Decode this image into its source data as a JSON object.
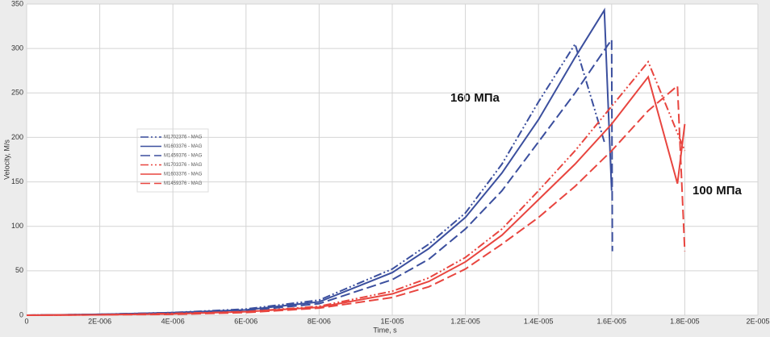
{
  "chart_data": {
    "type": "line",
    "xlabel": "Time, s",
    "ylabel": "Velocity, M/s",
    "xlim": [
      0,
      2e-05
    ],
    "ylim": [
      0,
      350
    ],
    "xticks": [
      0,
      {
        "value": 2e-06,
        "label": "2E-006"
      },
      {
        "value": 4e-06,
        "label": "4E-006"
      },
      {
        "value": 6e-06,
        "label": "6E-006"
      },
      {
        "value": 8e-06,
        "label": "8E-006"
      },
      {
        "value": 1e-05,
        "label": "1E-005"
      },
      {
        "value": 1.2e-05,
        "label": "1.2E-005"
      },
      {
        "value": 1.4e-05,
        "label": "1.4E-005"
      },
      {
        "value": 1.6e-05,
        "label": "1.6E-005"
      },
      {
        "value": 1.8e-05,
        "label": "1.8E-005"
      },
      {
        "value": 2e-05,
        "label": "2E-005"
      }
    ],
    "yticks": [
      0,
      50,
      100,
      150,
      200,
      250,
      300,
      350
    ],
    "grid": true,
    "annotations": [
      {
        "text": "160 МПа"
      },
      {
        "text": "100 МПа"
      }
    ],
    "series": [
      {
        "name": "M1702376 - MAG",
        "color": "#3b4f9e",
        "dash": "dashdotdot",
        "x": [
          0,
          2e-06,
          4e-06,
          6e-06,
          8e-06,
          1e-05,
          1.1e-05,
          1.2e-05,
          1.3e-05,
          1.4e-05,
          1.5e-05,
          1.58e-05
        ],
        "values": [
          0,
          1,
          3,
          7,
          17,
          52,
          80,
          115,
          170,
          240,
          305,
          195
        ]
      },
      {
        "name": "M1603376 - MAG",
        "color": "#3b4f9e",
        "dash": "solid",
        "x": [
          0,
          2e-06,
          4e-06,
          6e-06,
          8e-06,
          1e-05,
          1.1e-05,
          1.2e-05,
          1.3e-05,
          1.4e-05,
          1.5e-05,
          1.58e-05,
          1.6e-05
        ],
        "values": [
          0,
          1,
          3,
          6,
          15,
          48,
          75,
          110,
          160,
          220,
          290,
          343,
          140
        ]
      },
      {
        "name": "M1459376 - MAG",
        "color": "#3b4f9e",
        "dash": "dash",
        "x": [
          0,
          2e-06,
          4e-06,
          6e-06,
          8e-06,
          1e-05,
          1.1e-05,
          1.2e-05,
          1.3e-05,
          1.4e-05,
          1.5e-05,
          1.6e-05,
          1.602e-05
        ],
        "values": [
          0,
          1,
          2,
          5,
          13,
          40,
          63,
          97,
          140,
          195,
          250,
          310,
          72
        ]
      },
      {
        "name": "M1703376 - MAG",
        "color": "#e8453f",
        "dash": "dashdotdot",
        "x": [
          0,
          2e-06,
          4e-06,
          6e-06,
          8e-06,
          1e-05,
          1.1e-05,
          1.2e-05,
          1.3e-05,
          1.4e-05,
          1.5e-05,
          1.6e-05,
          1.7e-05,
          1.8e-05
        ],
        "values": [
          0,
          0.5,
          2,
          4,
          10,
          27,
          42,
          65,
          97,
          140,
          185,
          235,
          285,
          185
        ]
      },
      {
        "name": "M1603376 - MAG",
        "color": "#e8453f",
        "dash": "solid",
        "x": [
          0,
          2e-06,
          4e-06,
          6e-06,
          8e-06,
          1e-05,
          1.1e-05,
          1.2e-05,
          1.3e-05,
          1.4e-05,
          1.5e-05,
          1.6e-05,
          1.7e-05,
          1.78e-05,
          1.8e-05
        ],
        "values": [
          0,
          0.5,
          1.5,
          4,
          9,
          24,
          38,
          60,
          90,
          130,
          170,
          215,
          268,
          148,
          215
        ]
      },
      {
        "name": "M1459376 - MAG",
        "color": "#e8453f",
        "dash": "dash",
        "x": [
          0,
          2e-06,
          4e-06,
          6e-06,
          8e-06,
          1e-05,
          1.1e-05,
          1.2e-05,
          1.3e-05,
          1.4e-05,
          1.5e-05,
          1.6e-05,
          1.7e-05,
          1.78e-05,
          1.8e-05
        ],
        "values": [
          0,
          0.5,
          1,
          3,
          8,
          20,
          32,
          52,
          80,
          110,
          145,
          185,
          230,
          258,
          72
        ]
      }
    ]
  }
}
